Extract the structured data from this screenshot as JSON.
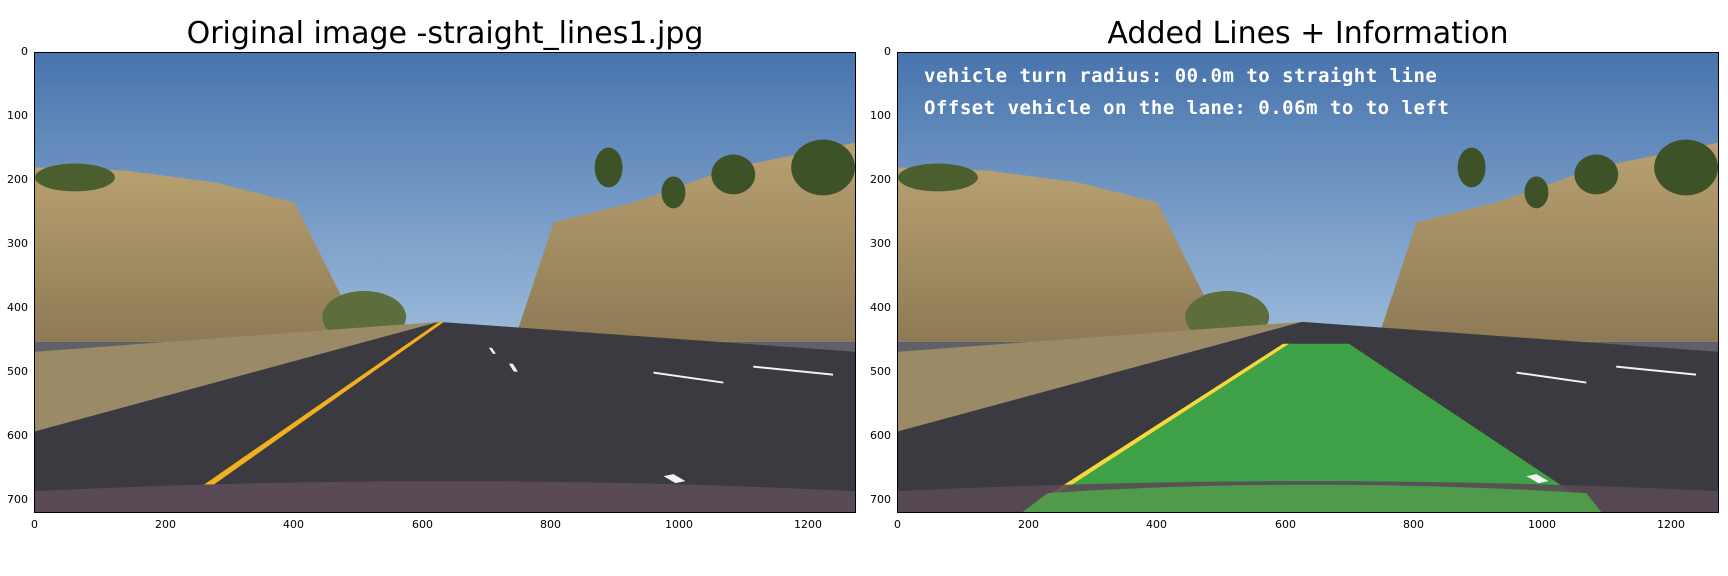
{
  "left_panel": {
    "title": "Original image -straight_lines1.jpg",
    "x_ticks": [
      "0",
      "200",
      "400",
      "600",
      "800",
      "1000",
      "1200"
    ],
    "y_ticks": [
      "0",
      "100",
      "200",
      "300",
      "400",
      "500",
      "600",
      "700"
    ]
  },
  "right_panel": {
    "title": "Added Lines + Information",
    "overlay": {
      "line1": "vehicle turn radius: 00.0m to straight line",
      "line2": "Offset vehicle on the lane: 0.06m to to left"
    },
    "x_ticks": [
      "0",
      "200",
      "400",
      "600",
      "800",
      "1000",
      "1200"
    ],
    "y_ticks": [
      "0",
      "100",
      "200",
      "300",
      "400",
      "500",
      "600",
      "700"
    ]
  },
  "image_axes": {
    "x_range": [
      0,
      1280
    ],
    "y_range": [
      0,
      720
    ],
    "y_inverted": true
  },
  "colors": {
    "sky_top": "#4a78b0",
    "sky_bottom": "#8fb3d6",
    "road": "#3a3a40",
    "lane_yellow": "#f2b01e",
    "lane_white": "#f2f2f2",
    "lane_fill_green": "#3fb44a",
    "hills": "#b39a6a",
    "trees": "#3f5a2a"
  }
}
